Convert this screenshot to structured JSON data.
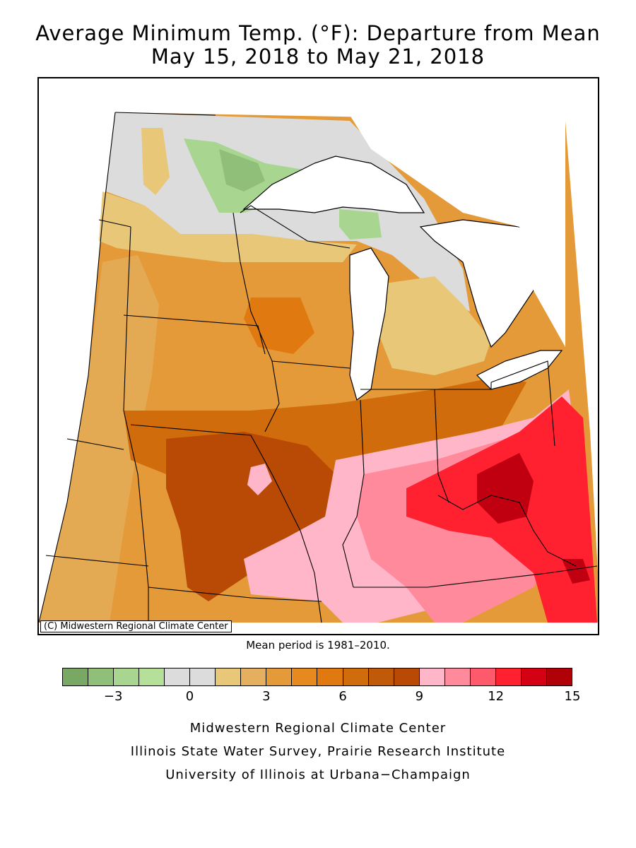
{
  "title": {
    "line1": "Average Minimum Temp. (°F): Departure from Mean",
    "line2": "May 15, 2018 to May 21, 2018"
  },
  "map": {
    "copyright": "(C) Midwestern Regional Climate Center",
    "colors": {
      "neg_green_dark": "#78a864",
      "neg_green": "#8fbf78",
      "neg_green_light": "#a8d690",
      "near_zero": "#dcdcdc",
      "tan_light": "#e8c878",
      "tan": "#e4b060",
      "orange_light": "#e49a38",
      "orange": "#e68a20",
      "orange_dark": "#d06c0c",
      "rust": "#b84a06",
      "pink_light": "#ffb6c8",
      "pink": "#ff8a9c",
      "red_light": "#ff4a5e",
      "red": "#f01828",
      "red_dark": "#c00010",
      "lake": "#ffffff"
    }
  },
  "mean_period": "Mean period is 1981–2010.",
  "legend": {
    "colors": [
      "#78a864",
      "#8fbf78",
      "#a8d690",
      "#b4e09a",
      "#dcdcdc",
      "#dcdcdc",
      "#e8c878",
      "#e4b060",
      "#e49a38",
      "#e68a20",
      "#e07a10",
      "#d06c0c",
      "#c05a08",
      "#b84a06",
      "#ffb6c8",
      "#ff8a9c",
      "#ff5a6c",
      "#ff2030",
      "#d40014",
      "#b00008"
    ],
    "ticks": [
      "−3",
      "0",
      "3",
      "6",
      "9",
      "12",
      "15"
    ]
  },
  "credits": {
    "line1": "Midwestern Regional Climate Center",
    "line2": "Illinois State Water Survey, Prairie Research Institute",
    "line3": "University of Illinois at Urbana−Champaign"
  }
}
